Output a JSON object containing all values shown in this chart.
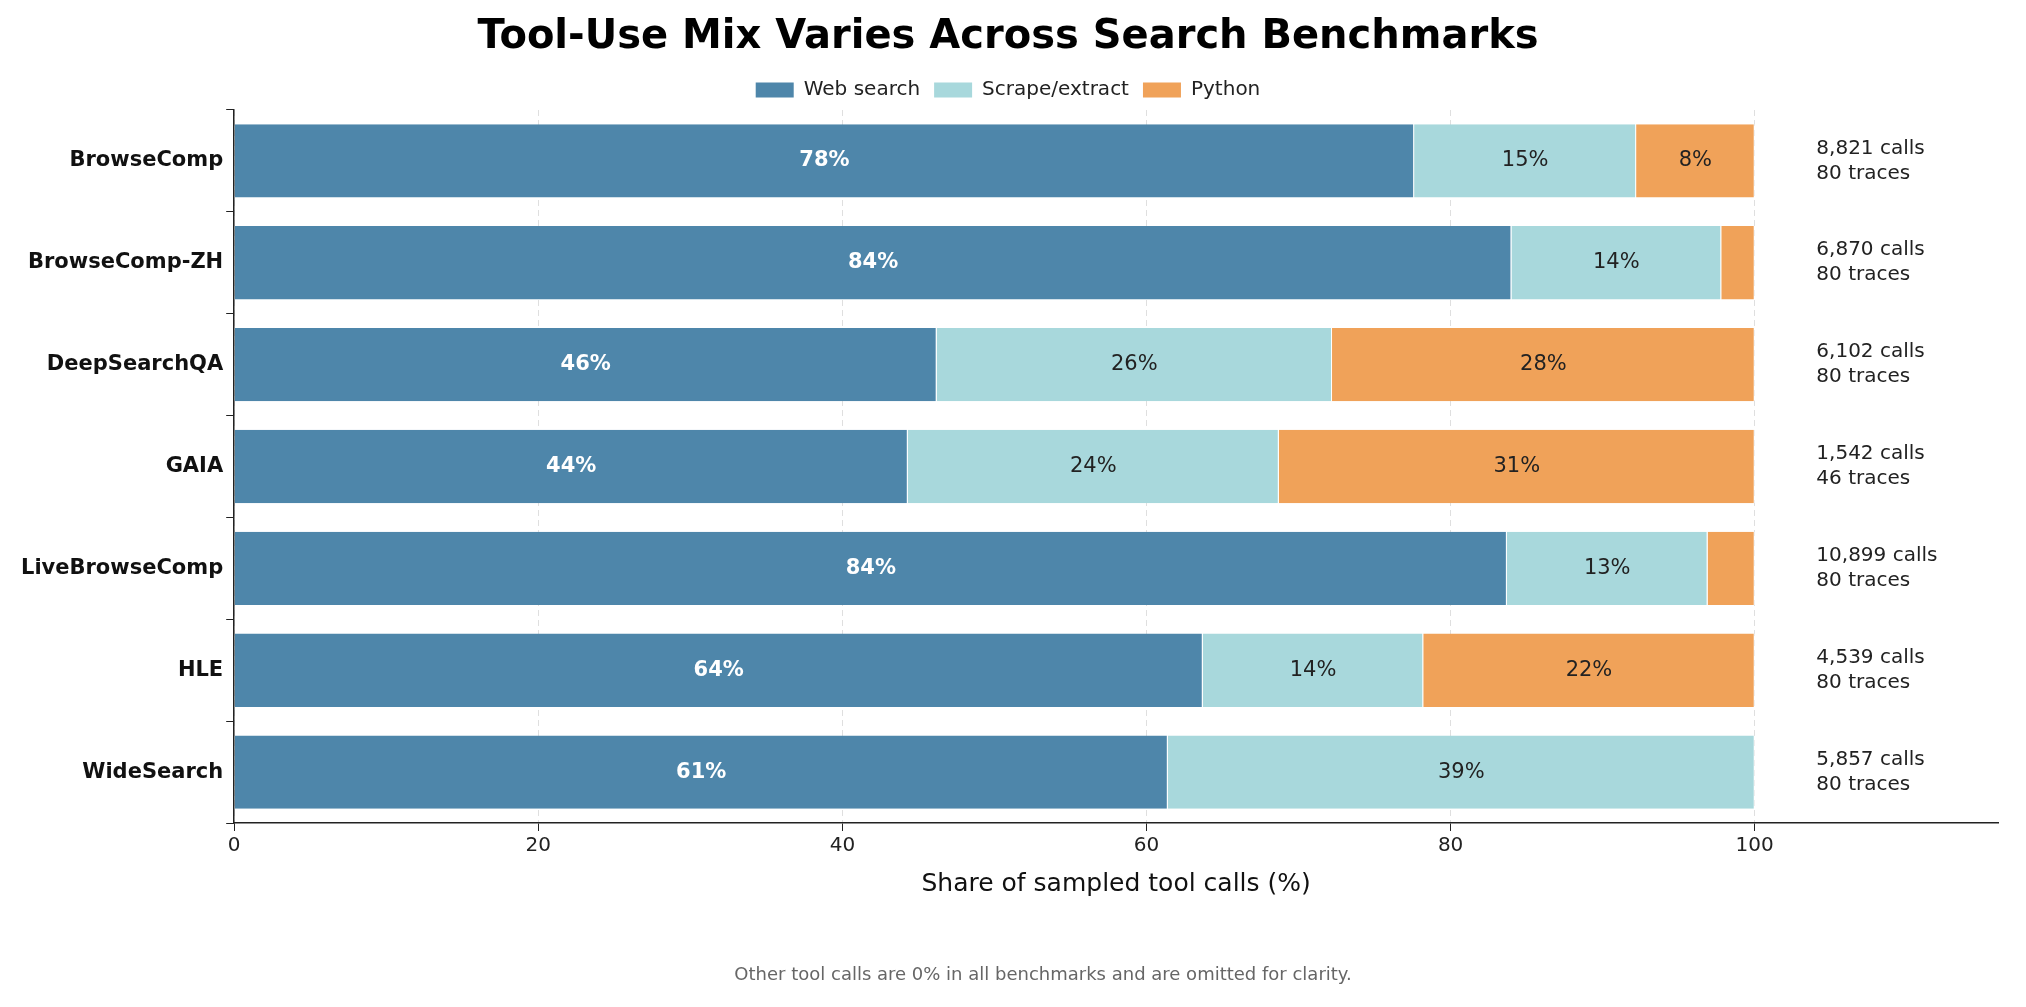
{
  "chart_data": {
    "type": "bar",
    "orientation": "horizontal",
    "stacked": true,
    "title": "Tool-Use Mix Varies Across Search Benchmarks",
    "xlabel": "Share of sampled tool calls (%)",
    "categories": [
      "BrowseComp",
      "BrowseComp-ZH",
      "DeepSearchQA",
      "GAIA",
      "LiveBrowseComp",
      "HLE",
      "WideSearch"
    ],
    "series": [
      {
        "name": "Web search",
        "color": "#4e86aa",
        "values": [
          77.6,
          84.0,
          46.2,
          44.3,
          83.7,
          63.7,
          61.4
        ],
        "value_labels": [
          "78%",
          "84%",
          "46%",
          "44%",
          "84%",
          "64%",
          "61%"
        ]
      },
      {
        "name": "Scrape/extract",
        "color": "#a8d8dc",
        "values": [
          14.6,
          13.8,
          26.0,
          24.4,
          13.2,
          14.5,
          38.6
        ],
        "value_labels": [
          "15%",
          "14%",
          "26%",
          "24%",
          "13%",
          "14%",
          "39%"
        ]
      },
      {
        "name": "Python",
        "color": "#f0a259",
        "values": [
          7.8,
          2.2,
          27.8,
          31.3,
          3.1,
          21.8,
          0
        ],
        "value_labels": [
          "8%",
          null,
          "28%",
          "31%",
          null,
          "22%",
          null
        ]
      }
    ],
    "xlim": [
      0,
      116
    ],
    "xticks": [
      0,
      20,
      40,
      60,
      80,
      100
    ],
    "grid": "x",
    "legend": "top",
    "annotations": [
      "8,821 calls\n80 traces",
      "6,870 calls\n80 traces",
      "6,102 calls\n80 traces",
      "1,542 calls\n46 traces",
      "10,899 calls\n80 traces",
      "4,539 calls\n80 traces",
      "5,857 calls\n80 traces",
      "Other tool calls are 0% in all benchmarks and are omitted for clarity."
    ]
  }
}
